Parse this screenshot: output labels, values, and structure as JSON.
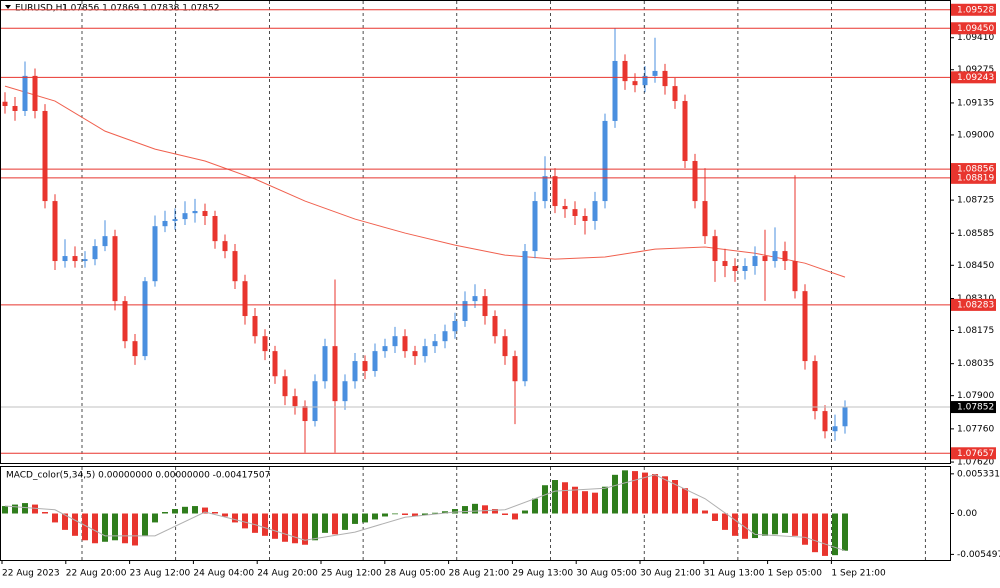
{
  "chart_data": {
    "type": "candlestick",
    "title": "EURUSD,H1",
    "ohlc_text": "1.07856 1.07869 1.07838 1.07852",
    "bull_color": "#4a8fdf",
    "bear_color": "#e8352e",
    "level_color": "#e8352e",
    "ma_color": "#f0604e",
    "ylim": [
      1.07616,
      1.09565
    ],
    "yticks": [
      {
        "value": 1.0941,
        "label": "1.09410"
      },
      1.09275,
      1.09135,
      {
        "value": 1.09,
        "label": "1.09000"
      },
      1.08725,
      1.08585,
      {
        "value": 1.0845,
        "label": "1.08450"
      },
      {
        "value": 1.0831,
        "label": "1.08310"
      },
      1.08175,
      1.08035,
      {
        "value": 1.079,
        "label": "1.07900"
      },
      {
        "value": 1.0776,
        "label": "1.07760"
      },
      {
        "value": 1.0762,
        "label": "1.07620"
      }
    ],
    "levels": [
      1.09528,
      {
        "value": 1.0945,
        "label": "1.09450"
      },
      1.09243,
      1.08856,
      1.08819,
      1.08283,
      1.07657
    ],
    "current": 1.07852,
    "x_labels": [
      "22 Aug 2023",
      "22 Aug 20:00",
      "23 Aug 12:00",
      "24 Aug 04:00",
      "24 Aug 20:00",
      "25 Aug 12:00",
      "28 Aug 05:00",
      "28 Aug 21:00",
      "29 Aug 13:00",
      "30 Aug 05:00",
      "30 Aug 21:00",
      "31 Aug 13:00",
      "1 Sep 05:00",
      "1 Sep 21:00"
    ],
    "open": [
      1.0914,
      1.09122,
      1.09101,
      1.09249,
      1.09101,
      1.08721,
      1.08468,
      1.08489,
      1.08468,
      1.08476,
      1.08531,
      1.08573,
      1.08299,
      1.0813,
      1.08067,
      1.08383,
      1.08615,
      1.08637,
      1.08645,
      1.0867,
      1.08679,
      1.08658,
      1.08552,
      1.0851,
      1.08383,
      1.08236,
      1.08151,
      1.08088,
      1.07982,
      1.07898,
      1.07856,
      1.07793,
      1.07961,
      1.08109,
      1.07877,
      1.07961,
      1.08046,
      1.08004,
      1.08088,
      1.08109,
      1.08151,
      1.08088,
      1.08067,
      1.08109,
      1.0813,
      1.08172,
      1.08215,
      1.08299,
      1.0832,
      1.08236,
      1.08151,
      1.08067,
      1.07961,
      1.0851,
      1.08721,
      1.08826,
      1.087,
      1.08687,
      1.08658,
      1.08637,
      1.08721,
      1.09059,
      1.09312,
      1.09227,
      1.0921,
      1.09249,
      1.0927,
      1.09206,
      1.09143,
      1.0889,
      1.08721,
      1.08573,
      1.08468,
      1.08447,
      1.08426,
      1.08447,
      1.08489,
      1.08468,
      1.0851,
      1.08468,
      1.08341,
      1.08046,
      1.07835,
      1.0775,
      1.07771
    ],
    "high": [
      1.0918,
      1.0916,
      1.0931,
      1.0928,
      1.0913,
      1.0875,
      1.0856,
      1.0853,
      1.0851,
      1.0856,
      1.0864,
      1.086,
      1.0832,
      1.0816,
      1.084,
      1.0866,
      1.0868,
      1.0869,
      1.0872,
      1.0873,
      1.0871,
      1.0868,
      1.0858,
      1.0854,
      1.0841,
      1.0827,
      1.0818,
      1.0811,
      1.0801,
      1.0793,
      1.0788,
      1.0799,
      1.0814,
      1.0839,
      1.0799,
      1.0808,
      1.0807,
      1.0812,
      1.0814,
      1.0819,
      1.0818,
      1.0811,
      1.0814,
      1.0816,
      1.082,
      1.0825,
      1.0834,
      1.0837,
      1.0835,
      1.0826,
      1.0818,
      1.0809,
      1.0854,
      1.0876,
      1.0891,
      1.0886,
      1.0873,
      1.0872,
      1.0869,
      1.0876,
      1.0909,
      1.0945,
      1.0934,
      1.0926,
      1.0929,
      1.0941,
      1.093,
      1.0924,
      1.0917,
      1.0892,
      1.0886,
      1.086,
      1.0852,
      1.0848,
      1.0848,
      1.0853,
      1.086,
      1.0861,
      1.0855,
      1.0883,
      1.0837,
      1.0807,
      1.0786,
      1.0782,
      1.0788
    ],
    "low": [
      1.0909,
      1.0906,
      1.0908,
      1.0907,
      1.0869,
      1.0843,
      1.0844,
      1.0844,
      1.0844,
      1.0845,
      1.0851,
      1.0826,
      1.081,
      1.0803,
      1.0805,
      1.0836,
      1.0859,
      1.086,
      1.0862,
      1.0863,
      1.0862,
      1.0852,
      1.0848,
      1.0835,
      1.082,
      1.0812,
      1.0805,
      1.0795,
      1.0786,
      1.0782,
      1.0766,
      1.0777,
      1.0793,
      1.0766,
      1.0784,
      1.0793,
      1.0797,
      1.0798,
      1.0806,
      1.0808,
      1.0806,
      1.0803,
      1.0804,
      1.0808,
      1.081,
      1.0814,
      1.0819,
      1.0827,
      1.082,
      1.0812,
      1.0803,
      1.0778,
      1.0794,
      1.0848,
      1.0869,
      1.0867,
      1.0865,
      1.0862,
      1.0858,
      1.086,
      1.0869,
      1.0903,
      1.0919,
      1.0918,
      1.0918,
      1.0922,
      1.0917,
      1.0911,
      1.0886,
      1.0869,
      1.0854,
      1.0838,
      1.084,
      1.0838,
      1.0839,
      1.0841,
      1.083,
      1.0844,
      1.0843,
      1.0831,
      1.0801,
      1.078,
      1.0772,
      1.0771,
      1.0774
    ],
    "close": [
      1.09122,
      1.09101,
      1.09249,
      1.09101,
      1.08721,
      1.08468,
      1.08489,
      1.08468,
      1.08476,
      1.08531,
      1.08573,
      1.08299,
      1.0813,
      1.08067,
      1.08383,
      1.08615,
      1.08637,
      1.08645,
      1.0867,
      1.08679,
      1.08658,
      1.08552,
      1.0851,
      1.08383,
      1.08236,
      1.08151,
      1.08088,
      1.07982,
      1.07898,
      1.07856,
      1.07793,
      1.07961,
      1.08109,
      1.07877,
      1.07961,
      1.08046,
      1.08004,
      1.08088,
      1.08109,
      1.08151,
      1.08088,
      1.08067,
      1.08109,
      1.0813,
      1.08172,
      1.08215,
      1.08299,
      1.0832,
      1.08236,
      1.08151,
      1.08067,
      1.07961,
      1.0851,
      1.08721,
      1.08826,
      1.087,
      1.08687,
      1.08658,
      1.08637,
      1.08721,
      1.09059,
      1.09312,
      1.09227,
      1.0921,
      1.09249,
      1.0927,
      1.09206,
      1.09143,
      1.0889,
      1.08721,
      1.08573,
      1.08468,
      1.08447,
      1.08426,
      1.08447,
      1.08489,
      1.08468,
      1.0851,
      1.08468,
      1.08341,
      1.08046,
      1.07835,
      1.0775,
      1.07771,
      1.07852
    ],
    "ma": {
      "x": [
        0,
        5,
        10,
        15,
        20,
        25,
        30,
        35,
        40,
        45,
        50,
        55,
        60,
        65,
        70,
        75,
        80,
        84
      ],
      "values": [
        1.09206,
        1.09143,
        1.09016,
        1.0894,
        1.0889,
        1.08814,
        1.08721,
        1.08645,
        1.08586,
        1.08535,
        1.08493,
        1.08476,
        1.08485,
        1.08518,
        1.08527,
        1.08501,
        1.08459,
        1.084
      ]
    },
    "macd": {
      "label": "MACD_color(5,34,5) 0.00000000 0.00000000 -0.00417507",
      "up_color": "#2f7d1c",
      "down_color": "#e8352e",
      "signal_color": "#b0b0b0",
      "ylim": [
        -0.00625,
        0.00625
      ],
      "yticks": [
        0.0053315,
        {
          "value": 0,
          "label": "0.00"
        },
        {
          "value": -0.005497,
          "label": "-0.0054970"
        }
      ],
      "values": [
        0.001,
        0.0012,
        0.0014,
        0.0012,
        0.0002,
        -0.0012,
        -0.0022,
        -0.003,
        -0.0036,
        -0.004,
        -0.0038,
        -0.0036,
        -0.004,
        -0.0043,
        -0.003,
        -0.0012,
        0.0002,
        0.0006,
        0.0009,
        0.001,
        0.0008,
        0.0002,
        -0.0004,
        -0.0012,
        -0.002,
        -0.0026,
        -0.003,
        -0.0034,
        -0.0038,
        -0.004,
        -0.0042,
        -0.0036,
        -0.0026,
        -0.0028,
        -0.0022,
        -0.0014,
        -0.0012,
        -0.0008,
        -0.0004,
        -0.0001,
        -0.0002,
        -0.0004,
        -0.0002,
        0.0001,
        0.0003,
        0.0006,
        0.001,
        0.0013,
        0.0011,
        0.0006,
        -0.0002,
        -0.0008,
        0.0004,
        0.002,
        0.0038,
        0.0045,
        0.0042,
        0.0036,
        0.003,
        0.0028,
        0.0036,
        0.0052,
        0.0058,
        0.0057,
        0.0055,
        0.0053,
        0.005,
        0.0045,
        0.0034,
        0.002,
        0.0004,
        -0.001,
        -0.0022,
        -0.003,
        -0.0034,
        -0.0033,
        -0.003,
        -0.0028,
        -0.0026,
        -0.003,
        -0.0042,
        -0.0052,
        -0.0057,
        -0.0056,
        -0.005
      ],
      "signal": {
        "x": [
          0,
          5,
          10,
          15,
          20,
          25,
          30,
          35,
          40,
          45,
          50,
          55,
          60,
          65,
          70,
          75,
          80,
          84
        ],
        "values": [
          0.001,
          0.0005,
          -0.003,
          -0.003,
          0.0002,
          -0.0015,
          -0.0036,
          -0.0025,
          -0.0005,
          0.0002,
          0.0005,
          0.003,
          0.0034,
          0.0052,
          0.002,
          -0.0028,
          -0.0032,
          -0.005
        ]
      }
    }
  }
}
